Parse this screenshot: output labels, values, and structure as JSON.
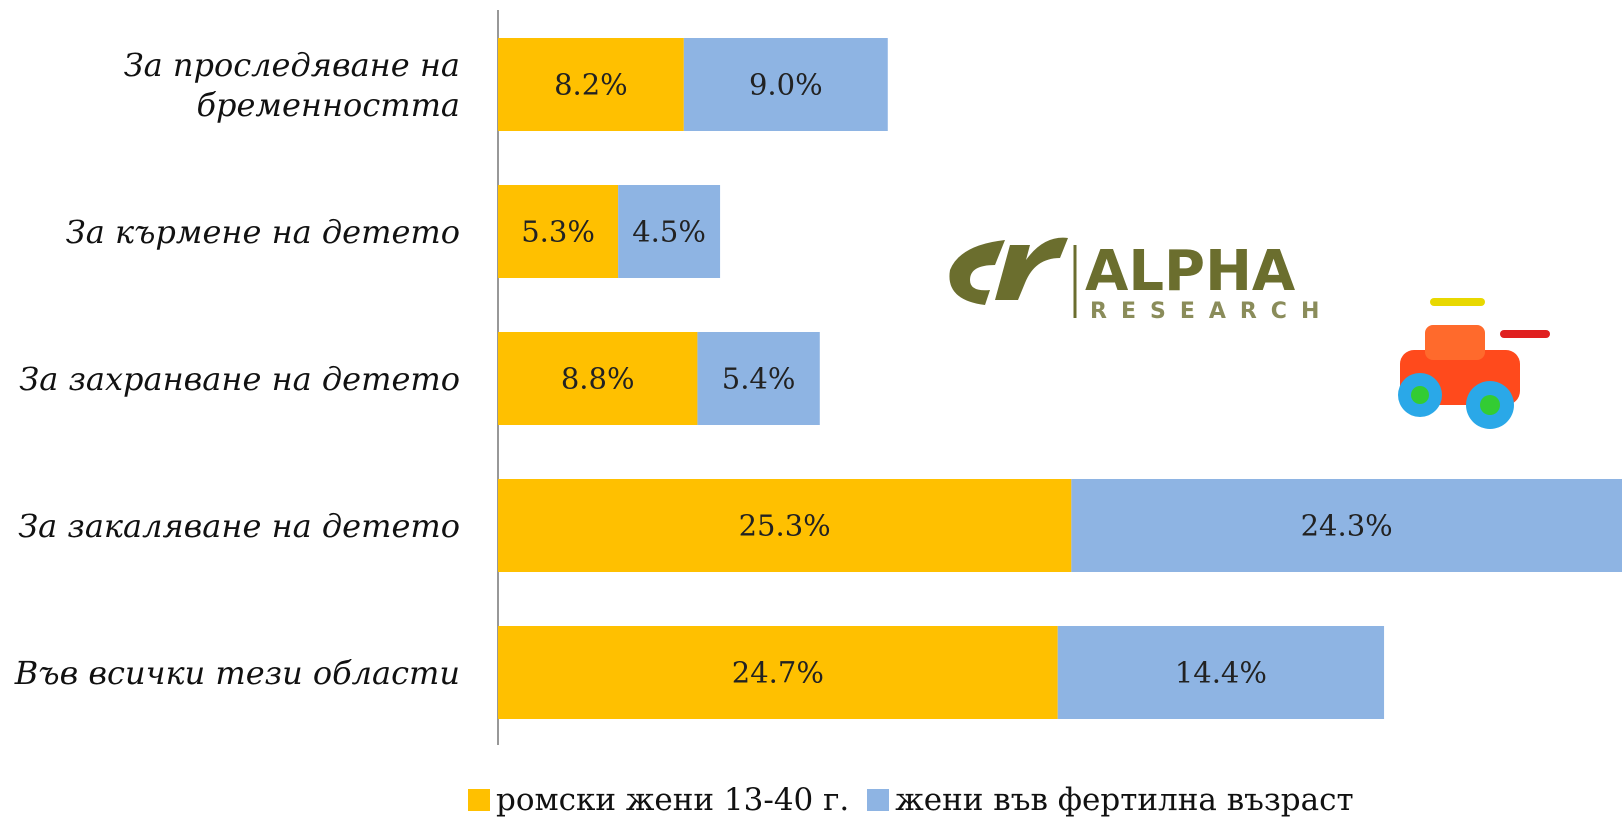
{
  "chart_data": {
    "type": "stacked-bar-horizontal",
    "categories": [
      "За проследяване на бременността",
      "За кърмене на детето",
      "За захранване на детето",
      "За закаляване на детето",
      "Във всички тези области"
    ],
    "series": [
      {
        "name": "ромски жени 13-40 г.",
        "color": "#FFC000",
        "values": [
          8.2,
          5.3,
          8.8,
          25.3,
          24.7
        ],
        "value_labels": [
          "8.2%",
          "5.3%",
          "8.8%",
          "25.3%",
          "24.7%"
        ]
      },
      {
        "name": "жени във фертилна възраст",
        "color": "#8EB4E3",
        "values": [
          9.0,
          4.5,
          5.4,
          24.3,
          14.4
        ],
        "value_labels": [
          "9.0%",
          "4.5%",
          "5.4%",
          "24.3%",
          "14.4%"
        ]
      }
    ],
    "legend": "bottom"
  },
  "logo": {
    "text": "ALPHA",
    "subtext": "RESEARCH"
  }
}
